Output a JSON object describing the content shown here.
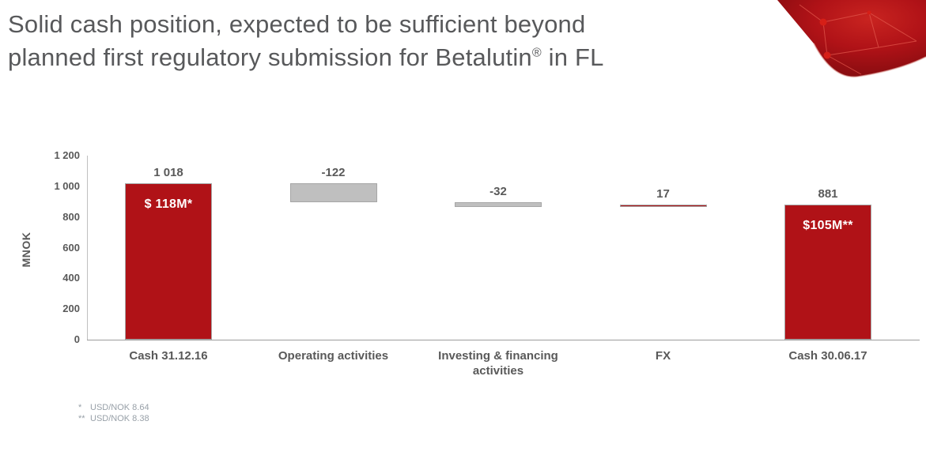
{
  "slide": {
    "title_line1": "Solid cash position, expected to be sufficient beyond",
    "title_line2_prefix": "planned first regulatory submission for Betalutin",
    "title_reg_mark": "®",
    "title_line2_suffix": " in FL",
    "title_color": "#58595B"
  },
  "decoration": {
    "capsule_graphic": "red-capsule-molecule-graphic",
    "capsule_dark": "#8B0D10",
    "capsule_mid": "#B01217",
    "capsule_bright": "#C92420",
    "capsule_line": "#E2574C"
  },
  "chart_data": {
    "type": "bar",
    "subtype": "waterfall",
    "title": "",
    "xlabel": "",
    "ylabel": "MNOK",
    "ylim": [
      0,
      1200
    ],
    "ytick_step": 200,
    "ytick_labels": [
      "0",
      "200",
      "400",
      "600",
      "800",
      "1 000",
      "1 200"
    ],
    "grid": false,
    "legend": "none",
    "categories": [
      "Cash 31.12.16",
      "Operating activities",
      "Investing & financing activities",
      "FX",
      "Cash 30.06.17"
    ],
    "bars": [
      {
        "category": "Cash 31.12.16",
        "value": 1018,
        "kind": "total",
        "color": "red",
        "value_label": "1 018",
        "inner_label": "$ 118M*"
      },
      {
        "category": "Operating activities",
        "value": -122,
        "kind": "delta",
        "color": "gray",
        "value_label": "-122",
        "inner_label": ""
      },
      {
        "category": "Investing & financing activities",
        "value": -32,
        "kind": "delta",
        "color": "gray",
        "value_label": "-32",
        "inner_label": ""
      },
      {
        "category": "FX",
        "value": 17,
        "kind": "delta",
        "color": "red",
        "value_label": "17",
        "inner_label": ""
      },
      {
        "category": "Cash 30.06.17",
        "value": 881,
        "kind": "total",
        "color": "red",
        "value_label": "881",
        "inner_label": "$105M**"
      }
    ],
    "colors": {
      "red": "#B01217",
      "gray": "#BFBFBF",
      "bar_border": "#A6A6A6",
      "axis_line": "#BFBFBF",
      "baseline": "#9C9C9C",
      "label_text": "#595959"
    }
  },
  "footnotes": [
    {
      "marker": "*",
      "text": "USD/NOK 8.64"
    },
    {
      "marker": "**",
      "text": "USD/NOK 8.38"
    }
  ]
}
